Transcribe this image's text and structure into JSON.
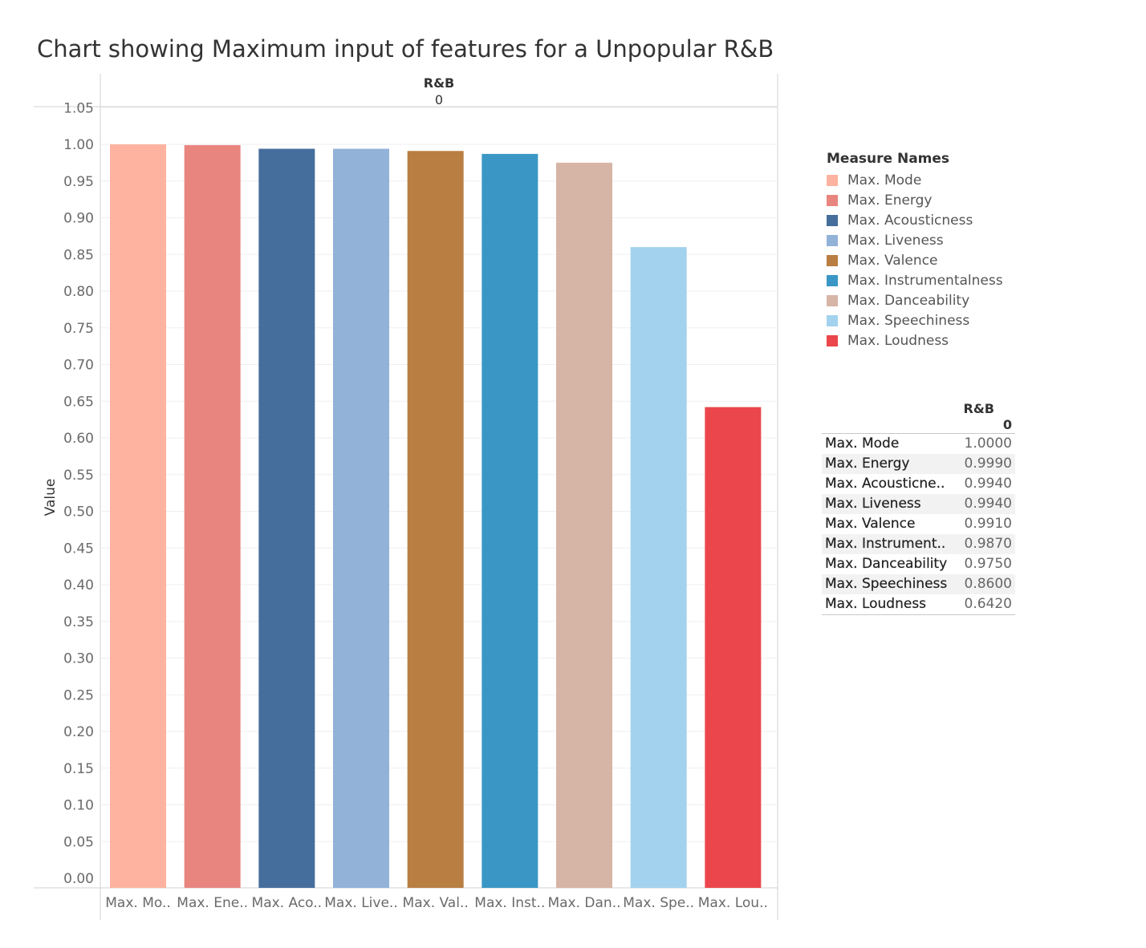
{
  "title": "Chart showing Maximum input of features for a Unpopular R&B",
  "chart_data": {
    "type": "bar",
    "title": "Chart showing Maximum input of features for a Unpopular R&B",
    "column_header": {
      "label": "R&B",
      "value": "0"
    },
    "ylabel": "Value",
    "xlabel": "",
    "ylim": [
      0,
      1.05
    ],
    "yticks": [
      "0.00",
      "0.05",
      "0.10",
      "0.15",
      "0.20",
      "0.25",
      "0.30",
      "0.35",
      "0.40",
      "0.45",
      "0.50",
      "0.55",
      "0.60",
      "0.65",
      "0.70",
      "0.75",
      "0.80",
      "0.85",
      "0.90",
      "0.95",
      "1.00",
      "1.05"
    ],
    "categories": [
      "Max. Mode",
      "Max. Energy",
      "Max. Acousticness",
      "Max. Liveness",
      "Max. Valence",
      "Max. Instrumentalness",
      "Max. Danceability",
      "Max. Speechiness",
      "Max. Loudness"
    ],
    "category_tick_labels": [
      "Max. Mo..",
      "Max. Ene..",
      "Max. Aco..",
      "Max. Live..",
      "Max. Val..",
      "Max. Inst..",
      "Max. Dan..",
      "Max. Spe..",
      "Max. Lou.."
    ],
    "values": [
      1.0,
      0.999,
      0.994,
      0.994,
      0.991,
      0.987,
      0.975,
      0.86,
      0.642
    ],
    "colors": [
      "#FDB39F",
      "#E9857F",
      "#466E9C",
      "#92B2D8",
      "#B97E42",
      "#3A97C5",
      "#D6B4A6",
      "#A2D2EE",
      "#EB464B"
    ],
    "grid": true,
    "legend_position": "right"
  },
  "legend": {
    "title": "Measure Names",
    "items": [
      "Max. Mode",
      "Max. Energy",
      "Max. Acousticness",
      "Max. Liveness",
      "Max. Valence",
      "Max. Instrumentalness",
      "Max. Danceability",
      "Max. Speechiness",
      "Max. Loudness"
    ]
  },
  "table": {
    "header_label": "R&B",
    "header_value": "0",
    "rows": [
      {
        "label": "Max. Mode",
        "value": "1.0000"
      },
      {
        "label": "Max. Energy",
        "value": "0.9990"
      },
      {
        "label": "Max. Acousticne..",
        "value": "0.9940"
      },
      {
        "label": "Max. Liveness",
        "value": "0.9940"
      },
      {
        "label": "Max. Valence",
        "value": "0.9910"
      },
      {
        "label": "Max. Instrument..",
        "value": "0.9870"
      },
      {
        "label": "Max. Danceability",
        "value": "0.9750"
      },
      {
        "label": "Max. Speechiness",
        "value": "0.8600"
      },
      {
        "label": "Max. Loudness",
        "value": "0.6420"
      }
    ]
  }
}
